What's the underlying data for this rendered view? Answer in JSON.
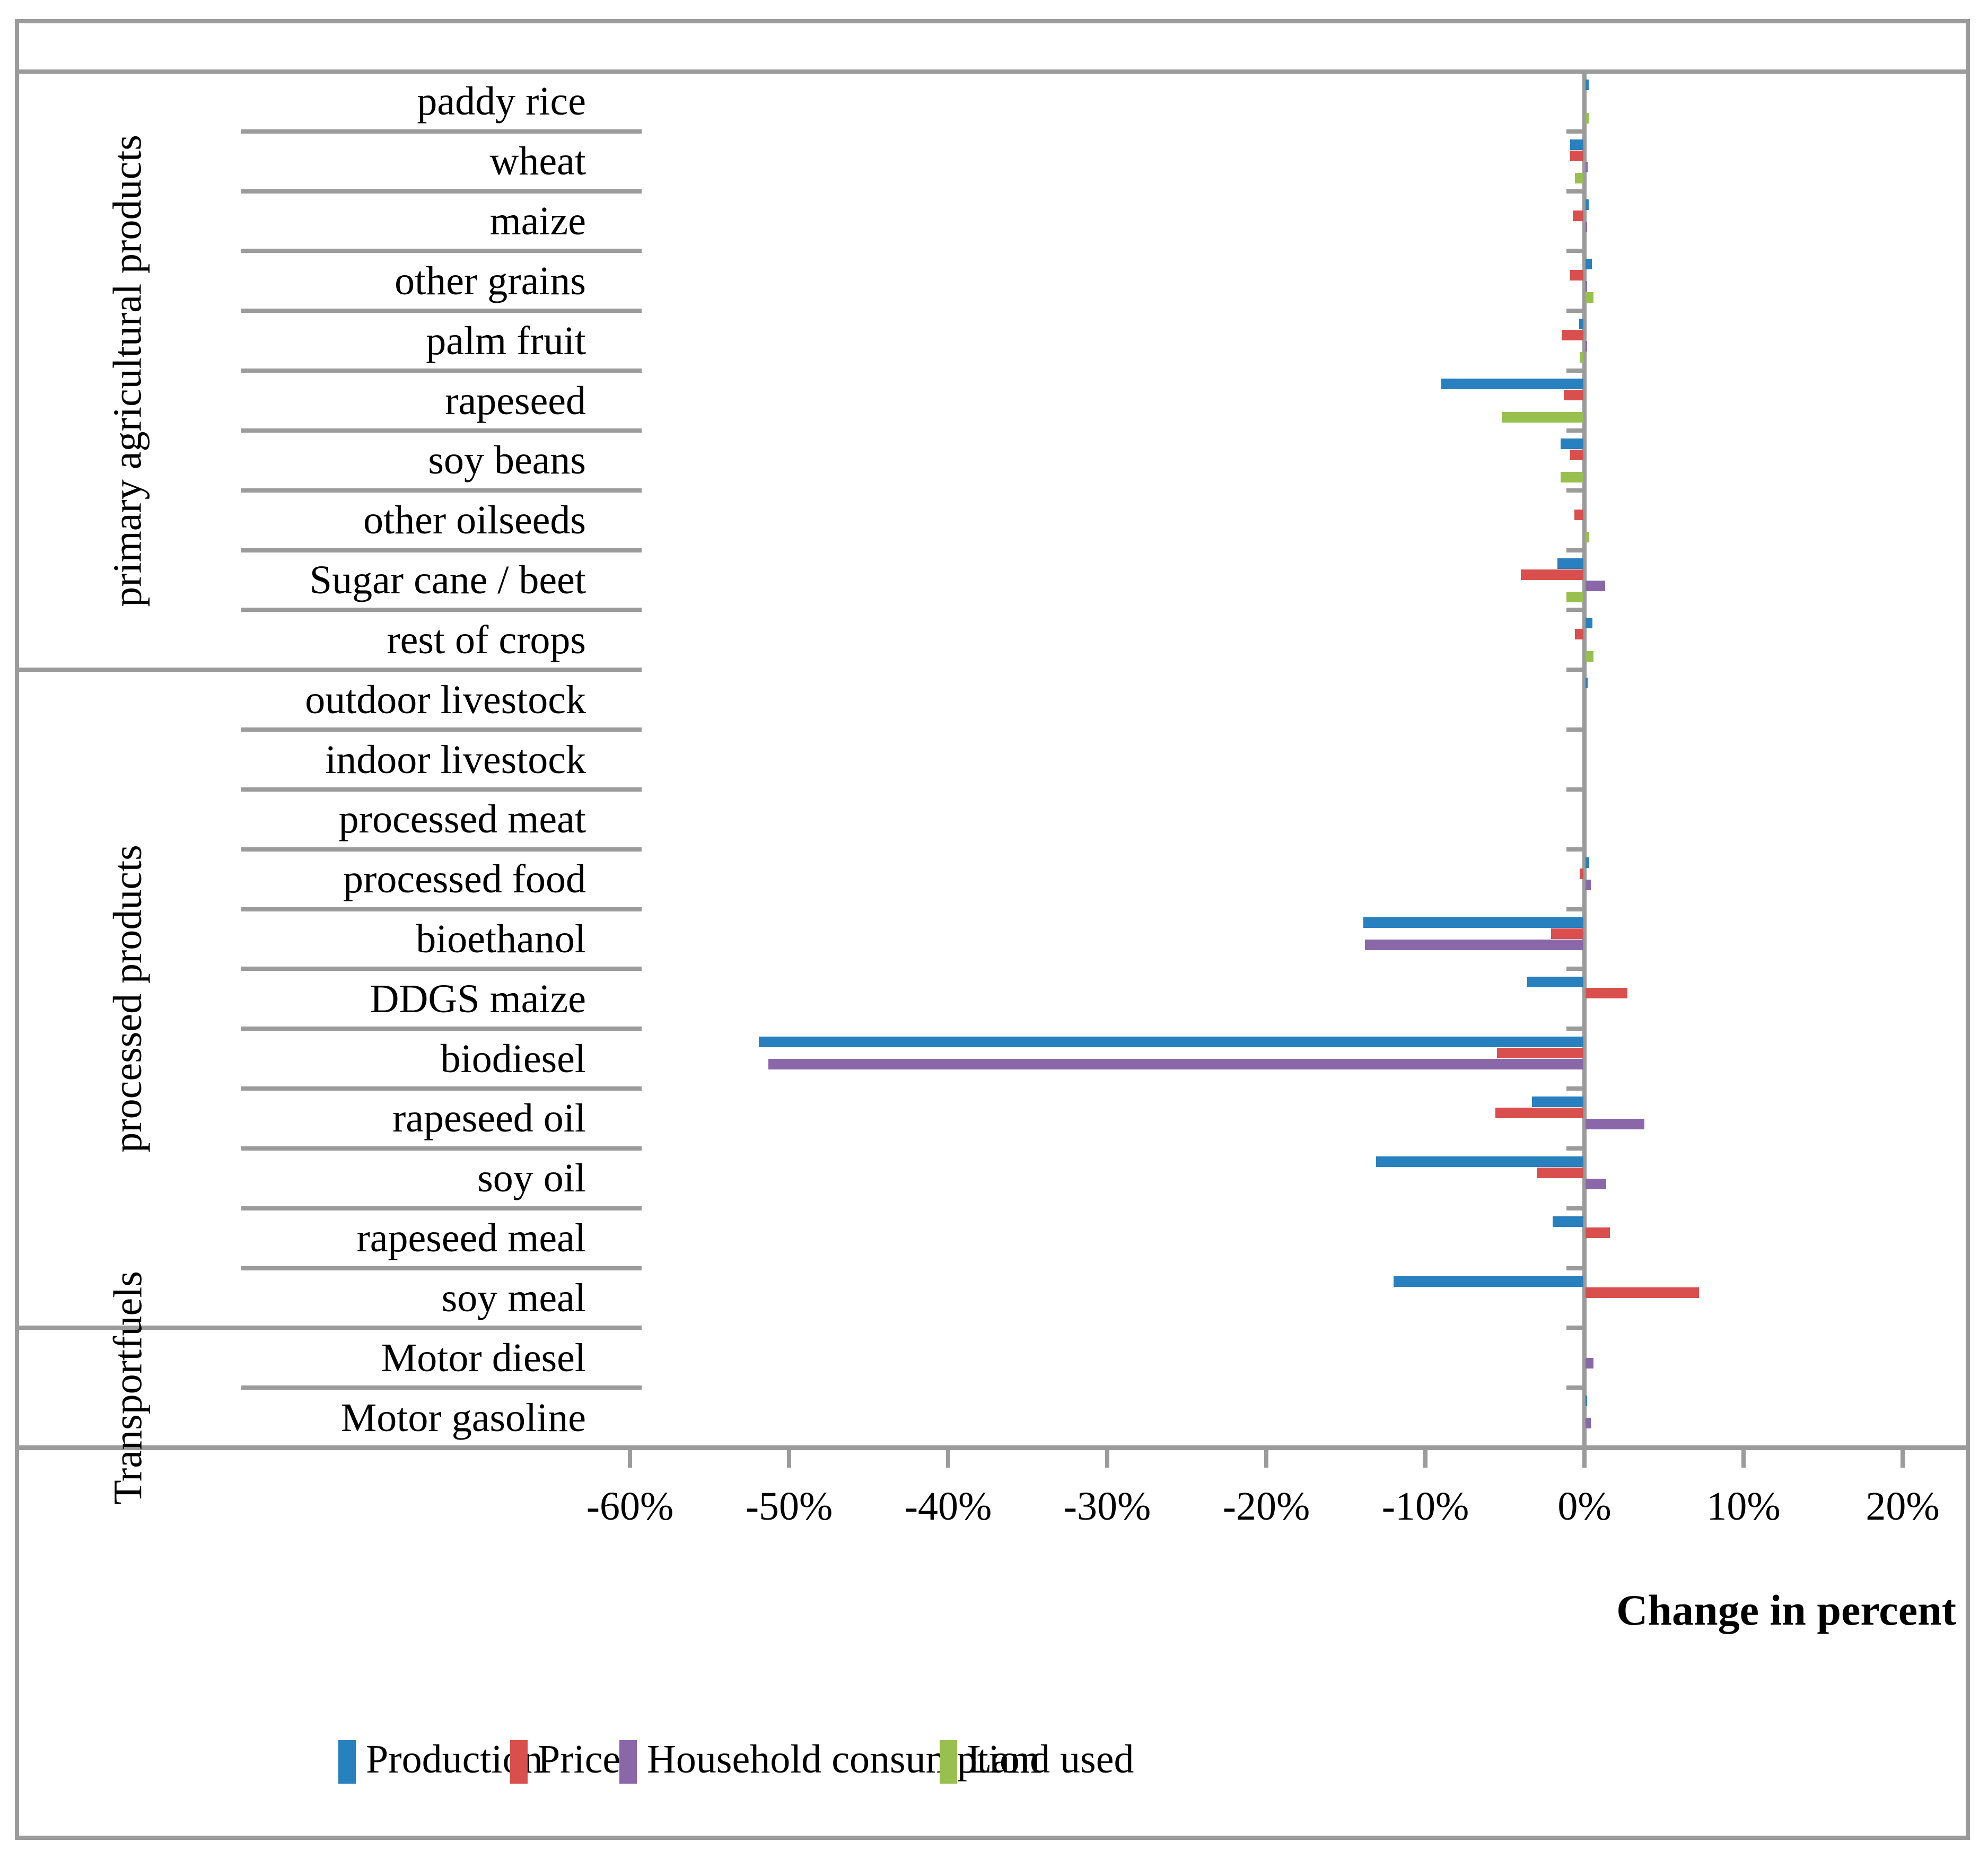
{
  "chart_data": {
    "type": "bar",
    "orientation": "horizontal",
    "xlabel": "Change in percent",
    "xlim": [
      -60,
      20
    ],
    "x_ticks": [
      "-60%",
      "-50%",
      "-40%",
      "-30%",
      "-20%",
      "-10%",
      "0%",
      "10%",
      "20%"
    ],
    "x_tick_values": [
      -60,
      -50,
      -40,
      -30,
      -20,
      -10,
      0,
      10,
      20
    ],
    "grid": "off",
    "legend_position": "bottom",
    "groups": [
      {
        "label": "primary agricultural products",
        "lines": [
          "primary agricultural products"
        ],
        "from": 0,
        "to": 9
      },
      {
        "label": "processed products",
        "lines": [
          "processed products"
        ],
        "from": 10,
        "to": 20
      },
      {
        "label": "Transport fuels",
        "lines": [
          "Trans",
          "port",
          "fuels"
        ],
        "from": 21,
        "to": 22
      }
    ],
    "categories": [
      "paddy rice",
      "wheat",
      "maize",
      "other grains",
      "palm fruit",
      "rapeseed",
      "soy beans",
      "other oilseeds",
      "Sugar cane / beet",
      "rest of crops",
      "outdoor livestock",
      "indoor livestock",
      "processed meat",
      "processed food",
      "bioethanol",
      "DDGS maize",
      "biodiesel",
      "rapeseed oil",
      "soy oil",
      "rapeseed meal",
      "soy meal",
      "Motor diesel",
      "Motor gasoline"
    ],
    "series": [
      {
        "name": "Production",
        "color": "#2880be",
        "values": [
          0.25,
          -0.9,
          0.25,
          0.45,
          -0.35,
          -9.0,
          -1.5,
          0,
          -1.7,
          0.5,
          0.2,
          0,
          0,
          0.3,
          -13.9,
          -3.6,
          -51.9,
          -3.3,
          -13.1,
          -2.0,
          -12.0,
          0,
          0.15
        ]
      },
      {
        "name": "Price",
        "color": "#d94f4e",
        "values": [
          0,
          -0.9,
          -0.75,
          -0.9,
          -1.45,
          -1.3,
          -0.9,
          -0.65,
          -4.0,
          -0.6,
          0,
          0,
          0,
          -0.3,
          -2.1,
          2.7,
          -5.5,
          -5.6,
          -3.0,
          1.6,
          7.2,
          0,
          0
        ]
      },
      {
        "name": "Household consumption",
        "color": "#8a67a9",
        "values": [
          0,
          0.2,
          0.15,
          0.15,
          0.15,
          0,
          0,
          0,
          1.3,
          0,
          0,
          0,
          0,
          0.4,
          -13.8,
          0,
          -51.3,
          3.75,
          1.35,
          0,
          0,
          0.55,
          0.4
        ]
      },
      {
        "name": "Land used",
        "color": "#98c04f",
        "values": [
          0.25,
          -0.6,
          0,
          0.55,
          -0.3,
          -5.2,
          -1.5,
          0.3,
          -1.15,
          0.55,
          0,
          0,
          0,
          0,
          0,
          0,
          0,
          0,
          0,
          0,
          0,
          0,
          0
        ]
      }
    ]
  },
  "legend": {
    "items": [
      {
        "label": "Production",
        "color": "#2880be"
      },
      {
        "label": "Price",
        "color": "#d94f4e"
      },
      {
        "label": "Household consumption",
        "color": "#8a67a9"
      },
      {
        "label": "Land used",
        "color": "#98c04f"
      }
    ]
  },
  "axis": {
    "title": "Change in percent"
  },
  "style": {
    "line_color": "#9b9b9b",
    "text_color": "#000000",
    "background": "#ffffff"
  }
}
